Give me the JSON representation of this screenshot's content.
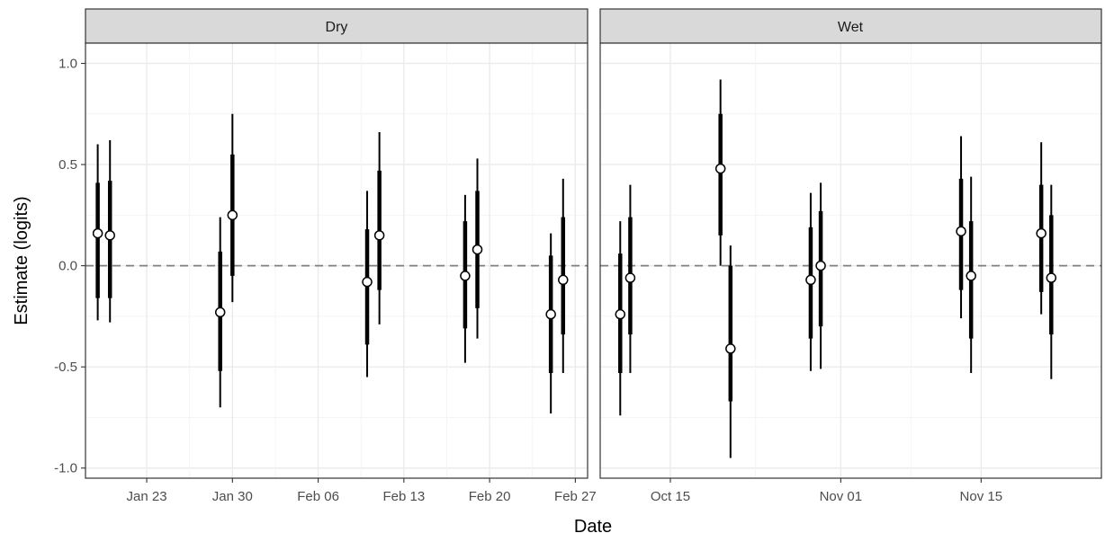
{
  "chart_data": {
    "type": "scatter",
    "ylabel": "Estimate (logits)",
    "xlabel": "Date",
    "ylim": [
      -1.05,
      1.1
    ],
    "yticks": [
      -1.0,
      -0.5,
      0.0,
      0.5,
      1.0
    ],
    "ytick_labels": [
      "-1.0",
      "-0.5",
      "0.0",
      "0.5",
      "1.0"
    ],
    "reference_line": {
      "y": 0,
      "style": "dashed"
    },
    "grid": true,
    "panels": [
      {
        "label": "Dry",
        "xlim": [
          "2022-01-18",
          "2022-02-28"
        ],
        "xticks": [
          "2022-01-23",
          "2022-01-30",
          "2022-02-06",
          "2022-02-13",
          "2022-02-20",
          "2022-02-27"
        ],
        "xtick_labels": [
          "Jan 23",
          "Jan 30",
          "Feb 06",
          "Feb 13",
          "Feb 20",
          "Feb 27"
        ],
        "points": [
          {
            "x": "2022-01-19",
            "estimate": 0.16,
            "inner": [
              -0.16,
              0.41
            ],
            "outer": [
              -0.27,
              0.6
            ]
          },
          {
            "x": "2022-01-20",
            "estimate": 0.15,
            "inner": [
              -0.16,
              0.42
            ],
            "outer": [
              -0.28,
              0.62
            ]
          },
          {
            "x": "2022-01-29",
            "estimate": -0.23,
            "inner": [
              -0.52,
              0.07
            ],
            "outer": [
              -0.7,
              0.24
            ]
          },
          {
            "x": "2022-01-30",
            "estimate": 0.25,
            "inner": [
              -0.05,
              0.55
            ],
            "outer": [
              -0.18,
              0.75
            ]
          },
          {
            "x": "2022-02-10",
            "estimate": -0.08,
            "inner": [
              -0.39,
              0.18
            ],
            "outer": [
              -0.55,
              0.37
            ]
          },
          {
            "x": "2022-02-11",
            "estimate": 0.15,
            "inner": [
              -0.12,
              0.47
            ],
            "outer": [
              -0.29,
              0.66
            ]
          },
          {
            "x": "2022-02-18",
            "estimate": -0.05,
            "inner": [
              -0.31,
              0.22
            ],
            "outer": [
              -0.48,
              0.35
            ]
          },
          {
            "x": "2022-02-19",
            "estimate": 0.08,
            "inner": [
              -0.21,
              0.37
            ],
            "outer": [
              -0.36,
              0.53
            ]
          },
          {
            "x": "2022-02-25",
            "estimate": -0.24,
            "inner": [
              -0.53,
              0.05
            ],
            "outer": [
              -0.73,
              0.16
            ]
          },
          {
            "x": "2022-02-26",
            "estimate": -0.07,
            "inner": [
              -0.34,
              0.24
            ],
            "outer": [
              -0.53,
              0.43
            ]
          }
        ]
      },
      {
        "label": "Wet",
        "xlim": [
          "2021-10-08",
          "2021-11-27"
        ],
        "xticks": [
          "2021-10-15",
          "2021-11-01",
          "2021-11-15"
        ],
        "xtick_labels": [
          "Oct 15",
          "Nov 01",
          "Nov 15"
        ],
        "points": [
          {
            "x": "2021-10-10",
            "estimate": -0.24,
            "inner": [
              -0.53,
              0.06
            ],
            "outer": [
              -0.74,
              0.22
            ]
          },
          {
            "x": "2021-10-11",
            "estimate": -0.06,
            "inner": [
              -0.34,
              0.24
            ],
            "outer": [
              -0.53,
              0.4
            ]
          },
          {
            "x": "2021-10-20",
            "estimate": 0.48,
            "inner": [
              0.15,
              0.75
            ],
            "outer": [
              0.0,
              0.92
            ]
          },
          {
            "x": "2021-10-21",
            "estimate": -0.41,
            "inner": [
              -0.67,
              0.0
            ],
            "outer": [
              -0.95,
              0.1
            ]
          },
          {
            "x": "2021-10-29",
            "estimate": -0.07,
            "inner": [
              -0.36,
              0.19
            ],
            "outer": [
              -0.52,
              0.36
            ]
          },
          {
            "x": "2021-10-30",
            "estimate": 0.0,
            "inner": [
              -0.3,
              0.27
            ],
            "outer": [
              -0.51,
              0.41
            ]
          },
          {
            "x": "2021-11-13",
            "estimate": 0.17,
            "inner": [
              -0.12,
              0.43
            ],
            "outer": [
              -0.26,
              0.64
            ]
          },
          {
            "x": "2021-11-14",
            "estimate": -0.05,
            "inner": [
              -0.36,
              0.22
            ],
            "outer": [
              -0.53,
              0.44
            ]
          },
          {
            "x": "2021-11-21",
            "estimate": 0.16,
            "inner": [
              -0.13,
              0.4
            ],
            "outer": [
              -0.24,
              0.61
            ]
          },
          {
            "x": "2021-11-22",
            "estimate": -0.06,
            "inner": [
              -0.34,
              0.25
            ],
            "outer": [
              -0.56,
              0.4
            ]
          }
        ]
      }
    ],
    "colors": {
      "background": "#ffffff",
      "strip_fill": "#d9d9d9",
      "border": "#333333",
      "grid_major": "#ebebeb",
      "reference_line": "#7f7f7f",
      "interval": "#000000",
      "point_fill": "#ffffff",
      "tick_text": "#4d4d4d"
    }
  }
}
